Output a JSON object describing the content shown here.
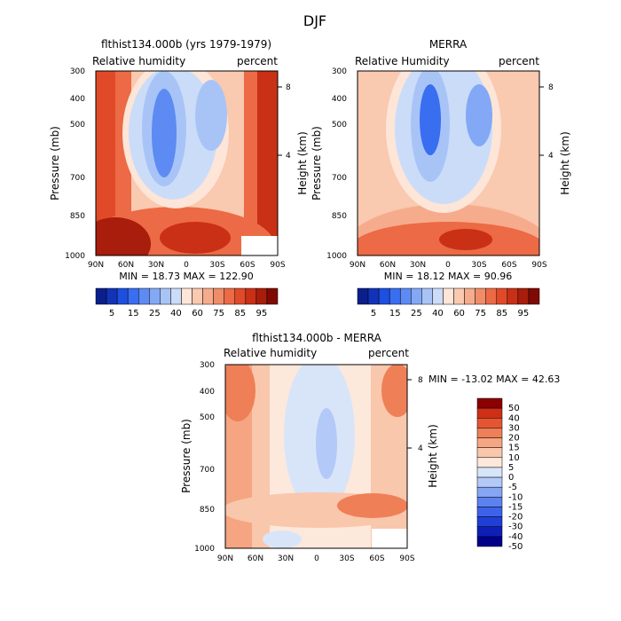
{
  "figure": {
    "title": "DJF"
  },
  "chart_data": [
    {
      "type": "heatmap",
      "title": "flthist134.000b (yrs 1979-1979)",
      "left_label": "Relative humidity",
      "right_label": "percent",
      "ylabel": "Pressure (mb)",
      "ylabel_right": "Height (km)",
      "x_ticks": [
        "90N",
        "60N",
        "30N",
        "0",
        "30S",
        "60S",
        "90S"
      ],
      "y_ticks": [
        300,
        400,
        500,
        700,
        850,
        1000
      ],
      "y_range": [
        300,
        1000
      ],
      "y_scale": "log",
      "right_ticks": [
        8,
        4
      ],
      "stats": "MIN = 18.73 MAX = 122.90",
      "contour_levels": [
        5,
        10,
        15,
        20,
        25,
        30,
        35,
        40,
        50,
        60,
        65,
        70,
        75,
        80,
        85,
        90,
        95
      ],
      "colorbar_labels": [
        "5",
        "15",
        "25",
        "40",
        "60",
        "75",
        "85",
        "95"
      ]
    },
    {
      "type": "heatmap",
      "title": "MERRA",
      "left_label": "Relative Humidity",
      "right_label": "percent",
      "ylabel": "Pressure (mb)",
      "ylabel_right": "Height (km)",
      "x_ticks": [
        "90N",
        "60N",
        "30N",
        "0",
        "30S",
        "60S",
        "90S"
      ],
      "y_ticks": [
        300,
        400,
        500,
        700,
        850,
        1000
      ],
      "y_range": [
        300,
        1000
      ],
      "y_scale": "log",
      "right_ticks": [
        8,
        4
      ],
      "stats": "MIN = 18.12 MAX = 90.96",
      "contour_levels": [
        5,
        10,
        15,
        20,
        25,
        30,
        35,
        40,
        50,
        60,
        65,
        70,
        75,
        80,
        85,
        90,
        95
      ],
      "colorbar_labels": [
        "5",
        "15",
        "25",
        "40",
        "60",
        "75",
        "85",
        "95"
      ]
    },
    {
      "type": "heatmap",
      "title": "flthist134.000b - MERRA",
      "left_label": "Relative humidity",
      "right_label": "percent",
      "ylabel": "Pressure (mb)",
      "ylabel_right": "Height (km)",
      "x_ticks": [
        "90N",
        "60N",
        "30N",
        "0",
        "30S",
        "60S",
        "90S"
      ],
      "y_ticks": [
        300,
        400,
        500,
        700,
        850,
        1000
      ],
      "y_range": [
        300,
        1000
      ],
      "y_scale": "log",
      "right_ticks": [
        8,
        4
      ],
      "stats": "MIN = -13.02 MAX = 42.63",
      "contour_levels": [
        -50,
        -40,
        -30,
        -20,
        -15,
        -10,
        -5,
        0,
        5,
        10,
        15,
        20,
        30,
        40,
        50
      ],
      "colorbar_labels": [
        "50",
        "40",
        "30",
        "20",
        "15",
        "10",
        "5",
        "0",
        "-5",
        "-10",
        "-15",
        "-20",
        "-30",
        "-40",
        "-50"
      ]
    }
  ],
  "colors": {
    "abs_scale": [
      "#0a1f8c",
      "#1233b8",
      "#1d4fe0",
      "#3a6ef0",
      "#5d8bf3",
      "#83a8f5",
      "#a8c4f7",
      "#cbdcf8",
      "#fde5d8",
      "#f9c9b0",
      "#f6ac8c",
      "#f18c68",
      "#ec6a45",
      "#e14a28",
      "#c93016",
      "#a81d0b",
      "#7f0a04"
    ],
    "diff_scale": [
      "#00008b",
      "#0d1fb6",
      "#1f3fd6",
      "#3d62ea",
      "#5c82f0",
      "#86a6f4",
      "#b3c9f7",
      "#d8e5f9",
      "#fde8dc",
      "#f9c7ac",
      "#f5a582",
      "#ef7f57",
      "#e65532",
      "#cf2f15",
      "#8b0000"
    ]
  }
}
